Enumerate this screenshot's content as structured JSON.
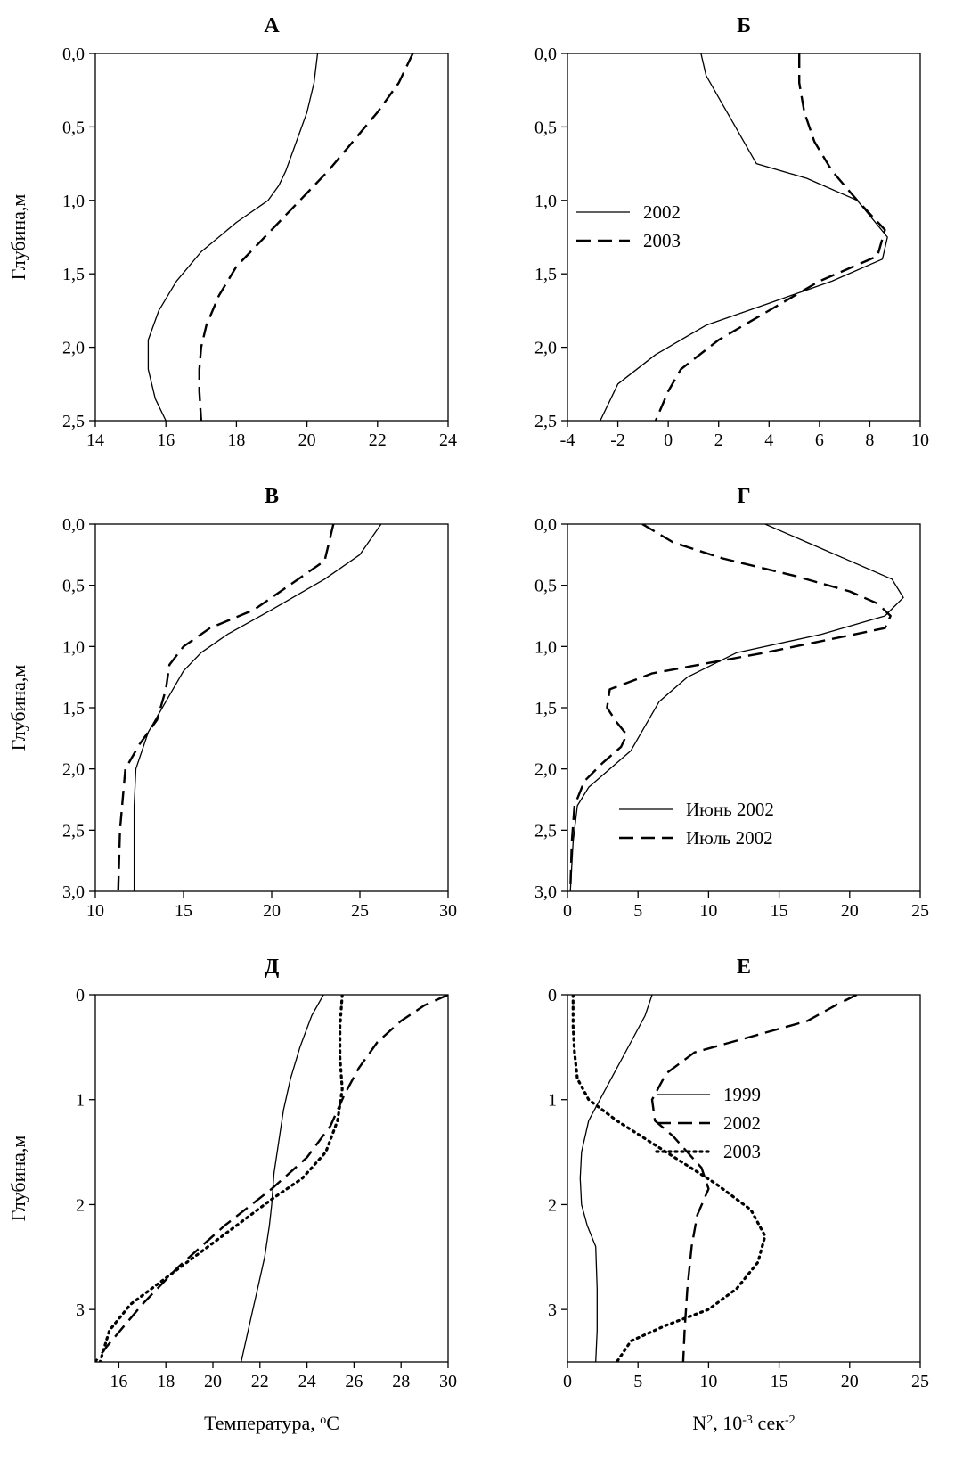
{
  "chart_data": [
    {
      "id": "A",
      "type": "line",
      "title": "А",
      "xlabel": "",
      "ylabel": "Глубина,м",
      "xlim": [
        14,
        24
      ],
      "ylim": [
        0,
        2.5
      ],
      "y_inverted": true,
      "xticks": [
        "14",
        "16",
        "18",
        "20",
        "22",
        "24"
      ],
      "yticks": [
        "0,0",
        "0,5",
        "1,0",
        "1,5",
        "2,0",
        "2,5"
      ],
      "legend": [],
      "series": [
        {
          "name": "2002",
          "style": "solid",
          "x": [
            20.3,
            20.2,
            20.0,
            19.7,
            19.4,
            19.2,
            18.9,
            18.0,
            17.0,
            16.3,
            15.8,
            15.5,
            15.5,
            15.7,
            16.0
          ],
          "y": [
            0.0,
            0.2,
            0.4,
            0.6,
            0.8,
            0.9,
            1.0,
            1.15,
            1.35,
            1.55,
            1.75,
            1.95,
            2.15,
            2.35,
            2.5
          ]
        },
        {
          "name": "2003",
          "style": "dashed",
          "x": [
            23.0,
            22.6,
            22.0,
            21.3,
            20.6,
            19.8,
            19.0,
            18.0,
            17.5,
            17.15,
            17.0,
            16.95,
            16.95,
            17.0
          ],
          "y": [
            0.0,
            0.2,
            0.4,
            0.6,
            0.8,
            1.0,
            1.2,
            1.45,
            1.65,
            1.85,
            2.0,
            2.15,
            2.3,
            2.5
          ]
        }
      ]
    },
    {
      "id": "B",
      "type": "line",
      "title": "Б",
      "xlabel": "",
      "ylabel": "",
      "xlim": [
        -4,
        10
      ],
      "ylim": [
        0,
        2.5
      ],
      "y_inverted": true,
      "xticks": [
        "-4",
        "-2",
        "0",
        "2",
        "4",
        "6",
        "8",
        "10"
      ],
      "yticks": [
        "0,0",
        "0,5",
        "1,0",
        "1,5",
        "2,0",
        "2,5"
      ],
      "legend": [
        "2002",
        "2003"
      ],
      "legend_position": "middle-left",
      "series": [
        {
          "name": "2002",
          "style": "solid",
          "x": [
            1.3,
            1.5,
            2.0,
            2.5,
            3.0,
            3.5,
            5.5,
            7.5,
            8.7,
            8.5,
            6.5,
            4.0,
            1.5,
            -0.5,
            -2.0,
            -2.7
          ],
          "y": [
            0.0,
            0.15,
            0.3,
            0.45,
            0.6,
            0.75,
            0.85,
            1.0,
            1.25,
            1.4,
            1.55,
            1.7,
            1.85,
            2.05,
            2.25,
            2.5
          ]
        },
        {
          "name": "2003",
          "style": "dashed",
          "x": [
            5.2,
            5.2,
            5.4,
            5.8,
            6.5,
            7.5,
            8.6,
            8.3,
            6.0,
            4.0,
            2.0,
            0.5,
            0.0,
            -0.5
          ],
          "y": [
            0.0,
            0.2,
            0.4,
            0.6,
            0.8,
            1.0,
            1.2,
            1.38,
            1.55,
            1.75,
            1.95,
            2.15,
            2.3,
            2.5
          ]
        }
      ]
    },
    {
      "id": "V",
      "type": "line",
      "title": "В",
      "xlabel": "",
      "ylabel": "Глубина,м",
      "xlim": [
        10,
        30
      ],
      "ylim": [
        0,
        3.0
      ],
      "y_inverted": true,
      "xticks": [
        "10",
        "15",
        "20",
        "25",
        "30"
      ],
      "yticks": [
        "0,0",
        "0,5",
        "1,0",
        "1,5",
        "2,0",
        "2,5",
        "3,0"
      ],
      "legend": [],
      "series": [
        {
          "name": "Июнь 2002",
          "style": "solid",
          "x": [
            26.2,
            25.0,
            23.0,
            20.0,
            17.5,
            16.0,
            15.0,
            14.0,
            13.0,
            12.3,
            12.2,
            12.2,
            12.2
          ],
          "y": [
            0.0,
            0.25,
            0.45,
            0.7,
            0.9,
            1.05,
            1.2,
            1.45,
            1.7,
            2.0,
            2.3,
            2.7,
            3.0
          ]
        },
        {
          "name": "Июль 2002",
          "style": "dashed",
          "x": [
            23.5,
            23.0,
            21.0,
            19.0,
            16.5,
            15.0,
            14.2,
            14.0,
            13.5,
            12.5,
            11.7,
            11.4,
            11.3
          ],
          "y": [
            0.0,
            0.3,
            0.5,
            0.7,
            0.85,
            1.0,
            1.15,
            1.35,
            1.6,
            1.8,
            2.0,
            2.5,
            3.0
          ]
        }
      ]
    },
    {
      "id": "G",
      "type": "line",
      "title": "Г",
      "xlabel": "",
      "ylabel": "",
      "xlim": [
        0,
        25
      ],
      "ylim": [
        0,
        3.0
      ],
      "y_inverted": true,
      "xticks": [
        "0",
        "5",
        "10",
        "15",
        "20",
        "25"
      ],
      "yticks": [
        "0,0",
        "0,5",
        "1,0",
        "1,5",
        "2,0",
        "2,5",
        "3,0"
      ],
      "legend": [
        "Июнь 2002",
        "Июль 2002"
      ],
      "legend_position": "bottom-right",
      "series": [
        {
          "name": "Июнь 2002",
          "style": "solid",
          "x": [
            14,
            17,
            20,
            23,
            23.8,
            22.5,
            18.0,
            12.0,
            8.5,
            6.5,
            5.5,
            4.5,
            3.0,
            1.5,
            0.7,
            0.4,
            0.2
          ],
          "y": [
            0.0,
            0.15,
            0.3,
            0.45,
            0.6,
            0.75,
            0.9,
            1.05,
            1.25,
            1.45,
            1.65,
            1.85,
            2.0,
            2.15,
            2.3,
            2.6,
            3.0
          ]
        },
        {
          "name": "Июль 2002",
          "style": "dashed",
          "x": [
            5.3,
            7.5,
            11.0,
            16.0,
            20.0,
            22.0,
            22.9,
            22.5,
            14.0,
            6.0,
            3.0,
            2.8,
            3.5,
            4.2,
            3.8,
            2.5,
            1.2,
            0.5,
            0.3,
            0.2
          ],
          "y": [
            0.0,
            0.15,
            0.28,
            0.42,
            0.55,
            0.65,
            0.75,
            0.85,
            1.05,
            1.22,
            1.35,
            1.5,
            1.62,
            1.72,
            1.82,
            1.95,
            2.1,
            2.3,
            2.6,
            3.0
          ]
        }
      ]
    },
    {
      "id": "D",
      "type": "line",
      "title": "Д",
      "xlabel": "Температура, °C",
      "ylabel": "Глубина,м",
      "xlim": [
        15,
        30
      ],
      "ylim": [
        0,
        3.5
      ],
      "y_inverted": true,
      "xticks": [
        "16",
        "18",
        "20",
        "22",
        "24",
        "26",
        "28",
        "30"
      ],
      "yticks": [
        "0",
        "1",
        "2",
        "3"
      ],
      "legend": [],
      "series": [
        {
          "name": "1999",
          "style": "solid",
          "x": [
            24.7,
            24.2,
            23.7,
            23.3,
            23.0,
            22.8,
            22.6,
            22.5,
            22.4,
            22.2,
            21.9,
            21.6,
            21.2
          ],
          "y": [
            0.0,
            0.2,
            0.5,
            0.8,
            1.1,
            1.4,
            1.7,
            2.0,
            2.2,
            2.5,
            2.8,
            3.1,
            3.5
          ]
        },
        {
          "name": "2002",
          "style": "dashed",
          "x": [
            30.0,
            29.0,
            28.0,
            27.0,
            26.2,
            25.6,
            25.0,
            24.0,
            22.5,
            20.5,
            18.5,
            17.0,
            15.5,
            15.0
          ],
          "y": [
            0.0,
            0.1,
            0.25,
            0.45,
            0.7,
            0.95,
            1.25,
            1.55,
            1.85,
            2.2,
            2.6,
            2.95,
            3.35,
            3.5
          ]
        },
        {
          "name": "2003",
          "style": "dotted",
          "x": [
            25.5,
            25.4,
            25.4,
            25.5,
            25.3,
            24.8,
            23.8,
            22.5,
            21.0,
            19.5,
            18.0,
            16.5,
            15.6,
            15.2
          ],
          "y": [
            0.0,
            0.3,
            0.6,
            0.9,
            1.2,
            1.5,
            1.75,
            1.95,
            2.2,
            2.45,
            2.7,
            2.95,
            3.2,
            3.5
          ]
        }
      ]
    },
    {
      "id": "E",
      "type": "line",
      "title": "Е",
      "xlabel": "N², 10⁻³ сек⁻²",
      "ylabel": "",
      "xlim": [
        0,
        25
      ],
      "ylim": [
        0,
        3.5
      ],
      "y_inverted": true,
      "xticks": [
        "0",
        "5",
        "10",
        "15",
        "20",
        "25"
      ],
      "yticks": [
        "0",
        "1",
        "2",
        "3"
      ],
      "legend": [
        "1999",
        "2002",
        "2003"
      ],
      "legend_position": "upper-middle",
      "series": [
        {
          "name": "1999",
          "style": "solid",
          "x": [
            6.0,
            5.5,
            4.5,
            3.5,
            2.5,
            1.5,
            1.0,
            0.9,
            1.0,
            1.4,
            2.0,
            2.1,
            2.1,
            2.0
          ],
          "y": [
            0.0,
            0.2,
            0.45,
            0.7,
            0.95,
            1.2,
            1.5,
            1.75,
            2.0,
            2.2,
            2.4,
            2.8,
            3.2,
            3.5
          ]
        },
        {
          "name": "2002",
          "style": "dashed",
          "x": [
            20.5,
            19.0,
            17.0,
            13.0,
            9.0,
            7.0,
            6.0,
            6.2,
            7.5,
            8.5,
            9.5,
            10.0,
            9.2,
            8.8,
            8.5,
            8.3,
            8.2
          ],
          "y": [
            0.0,
            0.1,
            0.25,
            0.4,
            0.55,
            0.75,
            1.0,
            1.2,
            1.35,
            1.5,
            1.65,
            1.85,
            2.1,
            2.4,
            2.8,
            3.2,
            3.5
          ]
        },
        {
          "name": "2003",
          "style": "dotted",
          "x": [
            0.4,
            0.4,
            0.5,
            0.7,
            1.5,
            3.5,
            7.0,
            10.5,
            13.0,
            14.0,
            13.5,
            12.0,
            10.0,
            7.0,
            4.5,
            3.5
          ],
          "y": [
            0.0,
            0.3,
            0.55,
            0.8,
            1.0,
            1.2,
            1.5,
            1.8,
            2.05,
            2.3,
            2.55,
            2.8,
            3.0,
            3.15,
            3.3,
            3.5
          ]
        }
      ]
    }
  ]
}
